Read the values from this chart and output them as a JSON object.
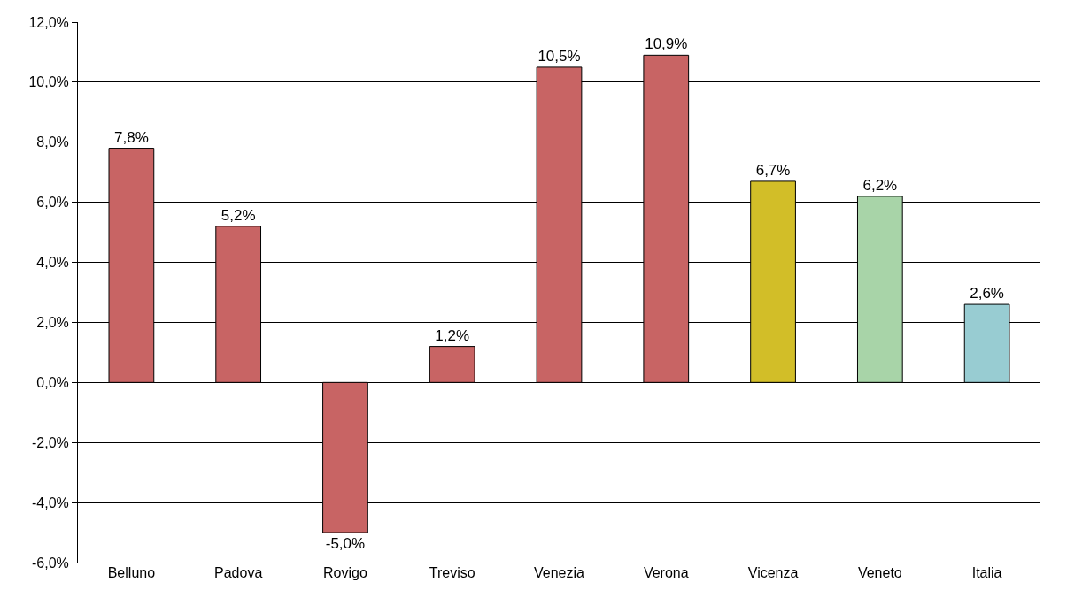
{
  "chart_data": {
    "type": "bar",
    "categories": [
      "Belluno",
      "Padova",
      "Rovigo",
      "Treviso",
      "Venezia",
      "Verona",
      "Vicenza",
      "Veneto",
      "Italia"
    ],
    "values": [
      7.8,
      5.2,
      -5.0,
      1.2,
      10.5,
      10.9,
      6.7,
      6.2,
      2.6
    ],
    "colors": [
      "#c86464",
      "#c86464",
      "#c86464",
      "#c86464",
      "#c86464",
      "#c86464",
      "#d2be28",
      "#a8d4a8",
      "#98ccd2"
    ],
    "value_labels": [
      "7,8%",
      "5,2%",
      "-5,0%",
      "1,2%",
      "10,5%",
      "10,9%",
      "6,7%",
      "6,2%",
      "2,6%"
    ],
    "ylim": [
      -6,
      12
    ],
    "yticks": [
      {
        "value": -6,
        "label": "-6,0%"
      },
      {
        "value": -4,
        "label": "-4,0%"
      },
      {
        "value": -2,
        "label": "-2,0%"
      },
      {
        "value": 0,
        "label": "0,0%"
      },
      {
        "value": 2,
        "label": "2,0%"
      },
      {
        "value": 4,
        "label": "4,0%"
      },
      {
        "value": 6,
        "label": "6,0%"
      },
      {
        "value": 8,
        "label": "8,0%"
      },
      {
        "value": 10,
        "label": "10,0%"
      },
      {
        "value": 12,
        "label": "12,0%"
      }
    ],
    "grid": "y"
  }
}
